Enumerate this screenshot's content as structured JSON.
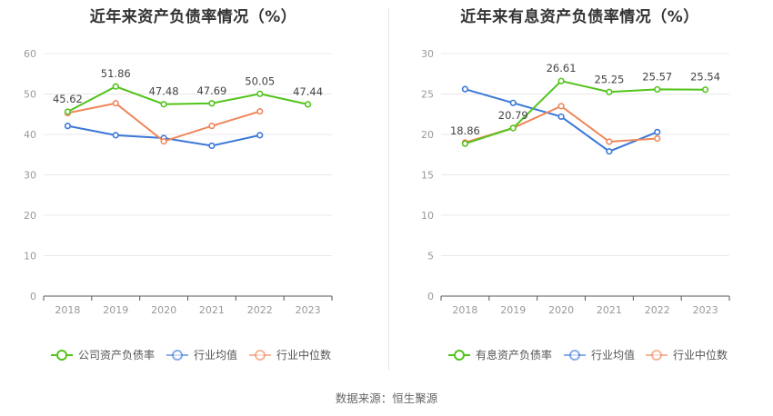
{
  "source_text": "数据来源：恒生聚源",
  "chart_data": [
    {
      "type": "line",
      "title": "近年来资产负债率情况（%）",
      "categories": [
        "2018",
        "2019",
        "2020",
        "2021",
        "2022",
        "2023"
      ],
      "ylim": [
        0,
        60
      ],
      "yticks": [
        0,
        10,
        20,
        30,
        40,
        50,
        60
      ],
      "grid": true,
      "legend_position": "bottom",
      "series": [
        {
          "name": "公司资产负债率",
          "color": "#52c41a",
          "values": [
            45.62,
            51.86,
            47.48,
            47.69,
            50.05,
            47.44
          ],
          "labeled": true
        },
        {
          "name": "行业均值",
          "color": "#3a78d8",
          "values": [
            42.1,
            39.8,
            39.1,
            37.2,
            39.8,
            null
          ],
          "labeled": false
        },
        {
          "name": "行业中位数",
          "color": "#f0865a",
          "values": [
            45.3,
            47.7,
            38.3,
            42.1,
            45.7,
            null
          ],
          "labeled": false
        }
      ]
    },
    {
      "type": "line",
      "title": "近年来有息资产负债率情况（%）",
      "categories": [
        "2018",
        "2019",
        "2020",
        "2021",
        "2022",
        "2023"
      ],
      "ylim": [
        0,
        30
      ],
      "yticks": [
        0,
        5,
        10,
        15,
        20,
        25,
        30
      ],
      "grid": true,
      "legend_position": "bottom",
      "series": [
        {
          "name": "有息资产负债率",
          "color": "#52c41a",
          "values": [
            18.86,
            20.79,
            26.61,
            25.25,
            25.57,
            25.54
          ],
          "labeled": true
        },
        {
          "name": "行业均值",
          "color": "#3a78d8",
          "values": [
            25.6,
            23.9,
            22.2,
            17.9,
            20.3,
            null
          ],
          "labeled": false
        },
        {
          "name": "行业中位数",
          "color": "#f0865a",
          "values": [
            19.0,
            20.8,
            23.5,
            19.1,
            19.5,
            null
          ],
          "labeled": false
        }
      ]
    }
  ]
}
